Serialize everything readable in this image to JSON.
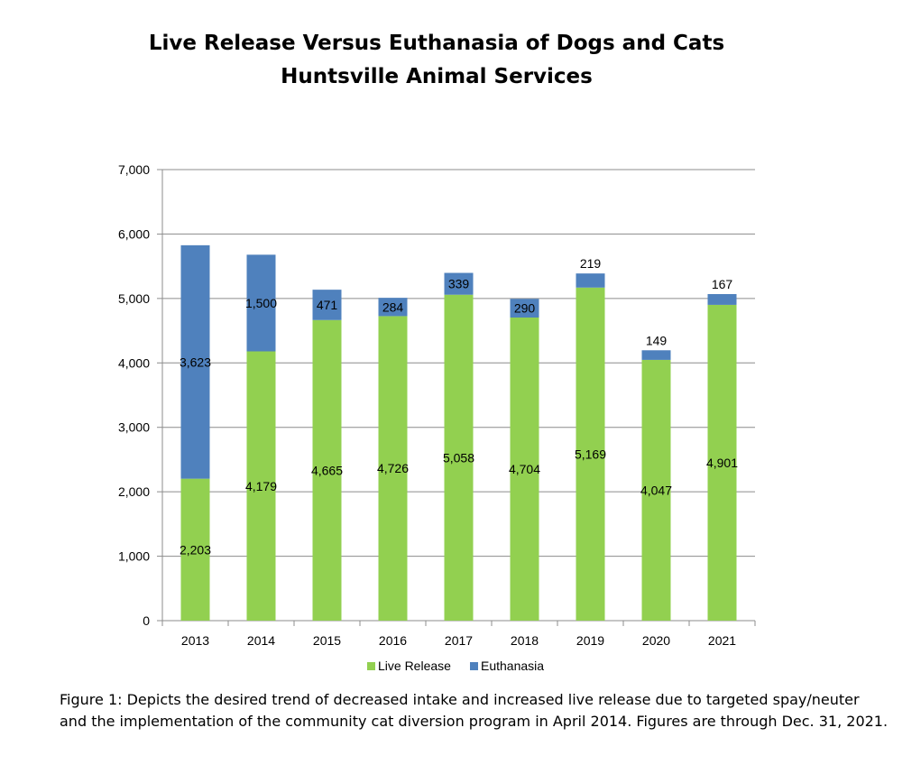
{
  "chart_data": {
    "type": "bar",
    "stacked": true,
    "title": "Live Release Versus Euthanasia of Dogs and Cats",
    "subtitle": "Huntsville Animal Services",
    "categories": [
      "2013",
      "2014",
      "2015",
      "2016",
      "2017",
      "2018",
      "2019",
      "2020",
      "2021"
    ],
    "series": [
      {
        "name": "Live Release",
        "color": "#92d050",
        "values": [
          2203,
          4179,
          4665,
          4726,
          5058,
          4704,
          5169,
          4047,
          4901
        ],
        "labels": [
          "2,203",
          "4,179",
          "4,665",
          "4,726",
          "5,058",
          "4,704",
          "5,169",
          "4,047",
          "4,901"
        ]
      },
      {
        "name": "Euthanasia",
        "color": "#4f81bd",
        "values": [
          3623,
          1500,
          471,
          284,
          339,
          290,
          219,
          149,
          167
        ],
        "labels": [
          "3,623",
          "1,500",
          "471",
          "284",
          "339",
          "290",
          "219",
          "149",
          "167"
        ]
      }
    ],
    "ylim": [
      0,
      7000
    ],
    "yticks": [
      0,
      1000,
      2000,
      3000,
      4000,
      5000,
      6000,
      7000
    ],
    "ytick_labels": [
      "0",
      "1,000",
      "2,000",
      "3,000",
      "4,000",
      "5,000",
      "6,000",
      "7,000"
    ],
    "grid": true,
    "legend_position": "bottom"
  },
  "caption": "Figure 1: Depicts the desired trend of decreased intake and increased live release due to targeted spay/neuter and the implementation of the community cat diversion program in April 2014.  Figures are through Dec. 31, 2021."
}
